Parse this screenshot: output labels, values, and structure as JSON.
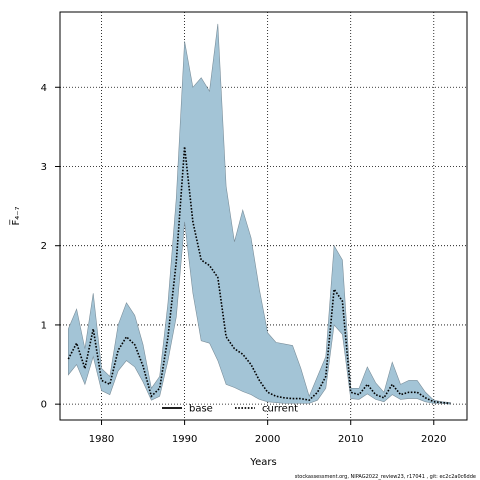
{
  "chart_data": {
    "type": "line",
    "xlabel": "Years",
    "ylabel": "F̅₄₋₇",
    "xlim": [
      1975,
      2024
    ],
    "ylim": [
      -0.2,
      4.95
    ],
    "x_ticks": [
      1980,
      1990,
      2000,
      2010,
      2020
    ],
    "y_ticks": [
      0,
      1,
      2,
      3,
      4
    ],
    "grid": true,
    "legend_position": "bottom-center",
    "band_color": "#a3c4d6",
    "band_edge_color": "#7a8e9a",
    "series": [
      {
        "name": "base",
        "style": "solid",
        "color": "#000000",
        "x": [],
        "y": []
      },
      {
        "name": "current",
        "style": "dotted",
        "color": "#000000",
        "x": [
          1976,
          1977,
          1978,
          1979,
          1980,
          1981,
          1982,
          1983,
          1984,
          1985,
          1986,
          1987,
          1988,
          1989,
          1990,
          1991,
          1992,
          1993,
          1994,
          1995,
          1996,
          1997,
          1998,
          1999,
          2000,
          2001,
          2002,
          2003,
          2004,
          2005,
          2006,
          2007,
          2008,
          2009,
          2010,
          2011,
          2012,
          2013,
          2014,
          2015,
          2016,
          2017,
          2018,
          2019,
          2020,
          2021,
          2022
        ],
        "y": [
          0.57,
          0.77,
          0.45,
          0.95,
          0.3,
          0.25,
          0.68,
          0.85,
          0.75,
          0.48,
          0.1,
          0.2,
          0.85,
          1.8,
          3.25,
          2.3,
          1.82,
          1.75,
          1.6,
          0.85,
          0.7,
          0.63,
          0.5,
          0.3,
          0.15,
          0.1,
          0.08,
          0.07,
          0.07,
          0.05,
          0.15,
          0.35,
          1.45,
          1.3,
          0.15,
          0.12,
          0.25,
          0.12,
          0.08,
          0.25,
          0.12,
          0.15,
          0.15,
          0.08,
          0.03,
          0.02,
          0.01
        ]
      }
    ],
    "band": {
      "x": [
        1976,
        1977,
        1978,
        1979,
        1980,
        1981,
        1982,
        1983,
        1984,
        1985,
        1986,
        1987,
        1988,
        1989,
        1990,
        1991,
        1992,
        1993,
        1994,
        1995,
        1996,
        1997,
        1998,
        1999,
        2000,
        2001,
        2002,
        2003,
        2004,
        2005,
        2006,
        2007,
        2008,
        2009,
        2010,
        2011,
        2012,
        2013,
        2014,
        2015,
        2016,
        2017,
        2018,
        2019,
        2020,
        2021,
        2022
      ],
      "upper": [
        0.95,
        1.2,
        0.7,
        1.4,
        0.45,
        0.35,
        1.0,
        1.28,
        1.12,
        0.75,
        0.2,
        0.35,
        1.28,
        2.6,
        4.58,
        4.0,
        4.12,
        3.95,
        4.8,
        2.75,
        2.05,
        2.45,
        2.1,
        1.45,
        0.9,
        0.78,
        0.76,
        0.74,
        0.45,
        0.1,
        0.35,
        0.6,
        2.0,
        1.82,
        0.2,
        0.2,
        0.47,
        0.27,
        0.15,
        0.53,
        0.25,
        0.3,
        0.3,
        0.15,
        0.05,
        0.03,
        0.02
      ],
      "lower": [
        0.37,
        0.5,
        0.25,
        0.6,
        0.17,
        0.12,
        0.42,
        0.55,
        0.47,
        0.28,
        0.05,
        0.1,
        0.55,
        1.1,
        2.3,
        1.4,
        0.8,
        0.77,
        0.55,
        0.25,
        0.21,
        0.16,
        0.12,
        0.06,
        0.03,
        0.02,
        0.01,
        0.01,
        0.01,
        0.01,
        0.05,
        0.2,
        1.0,
        0.88,
        0.07,
        0.06,
        0.13,
        0.06,
        0.03,
        0.12,
        0.06,
        0.07,
        0.07,
        0.03,
        0.01,
        0.01,
        0.0
      ]
    }
  },
  "footer": "stockassessment.org, NIPAG2022_review23, r17041 , git: ec2c2a0c6dde"
}
